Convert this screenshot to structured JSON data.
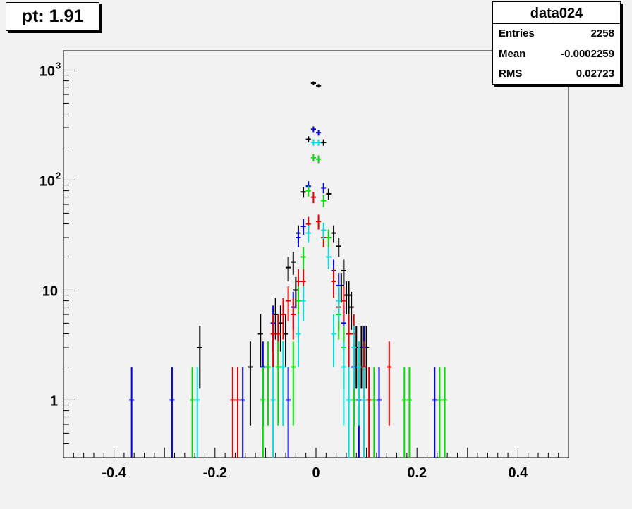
{
  "title": "pt: 1.91",
  "stats": {
    "name": "data024",
    "rows": [
      {
        "label": "Entries",
        "value": "2258"
      },
      {
        "label": "Mean",
        "value": "-0.0002259"
      },
      {
        "label": "RMS",
        "value": "0.02723"
      }
    ]
  },
  "chart_data": {
    "type": "scatter",
    "xlim": [
      -0.5,
      0.5
    ],
    "ylim": [
      0.3,
      1500
    ],
    "y_scale": "log",
    "x_ticks": [
      "-0.4",
      "-0.2",
      "0",
      "0.2",
      "0.4"
    ],
    "x_tick_values": [
      -0.4,
      -0.2,
      0,
      0.2,
      0.4
    ],
    "y_ticks": [
      {
        "value": 1,
        "base": "1",
        "exp": ""
      },
      {
        "value": 10,
        "base": "10",
        "exp": ""
      },
      {
        "value": 100,
        "base": "10",
        "exp": "2"
      },
      {
        "value": 1000,
        "base": "10",
        "exp": "3"
      }
    ],
    "series": [
      {
        "color": "#000000",
        "points": [
          [
            -0.23,
            3
          ],
          [
            -0.13,
            2
          ],
          [
            -0.11,
            4
          ],
          [
            -0.08,
            6
          ],
          [
            -0.07,
            5
          ],
          [
            -0.06,
            4
          ],
          [
            -0.055,
            16
          ],
          [
            -0.045,
            18
          ],
          [
            -0.04,
            10
          ],
          [
            -0.035,
            33
          ],
          [
            -0.025,
            78
          ],
          [
            -0.015,
            235
          ],
          [
            -0.005,
            760
          ],
          [
            0.005,
            720
          ],
          [
            0.015,
            220
          ],
          [
            0.025,
            75
          ],
          [
            0.035,
            33
          ],
          [
            0.045,
            25
          ],
          [
            0.05,
            11
          ],
          [
            0.055,
            15
          ],
          [
            0.06,
            9
          ],
          [
            0.065,
            9
          ],
          [
            0.07,
            7
          ],
          [
            0.08,
            3
          ],
          [
            0.09,
            3
          ],
          [
            0.1,
            3
          ]
        ]
      },
      {
        "color": "#0000dd",
        "points": [
          [
            -0.365,
            1
          ],
          [
            -0.285,
            1
          ],
          [
            -0.145,
            1
          ],
          [
            -0.105,
            2
          ],
          [
            -0.085,
            5
          ],
          [
            -0.065,
            2
          ],
          [
            -0.055,
            1
          ],
          [
            -0.045,
            7
          ],
          [
            -0.035,
            30
          ],
          [
            -0.025,
            38
          ],
          [
            -0.015,
            88
          ],
          [
            -0.005,
            290
          ],
          [
            0.005,
            270
          ],
          [
            0.015,
            85
          ],
          [
            0.025,
            30
          ],
          [
            0.035,
            15
          ],
          [
            0.045,
            11
          ],
          [
            0.055,
            5
          ],
          [
            0.065,
            4
          ],
          [
            0.075,
            2
          ],
          [
            0.085,
            1
          ],
          [
            0.095,
            3
          ],
          [
            0.125,
            1
          ],
          [
            0.235,
            1
          ]
        ]
      },
      {
        "color": "#dd0000",
        "points": [
          [
            -0.165,
            1
          ],
          [
            -0.155,
            1
          ],
          [
            -0.085,
            4
          ],
          [
            -0.075,
            4
          ],
          [
            -0.065,
            6
          ],
          [
            -0.055,
            8
          ],
          [
            -0.045,
            6
          ],
          [
            -0.035,
            12
          ],
          [
            -0.025,
            12
          ],
          [
            -0.015,
            40
          ],
          [
            -0.005,
            70
          ],
          [
            0.005,
            42
          ],
          [
            0.015,
            30
          ],
          [
            0.025,
            20
          ],
          [
            0.035,
            12
          ],
          [
            0.045,
            7
          ],
          [
            0.055,
            8
          ],
          [
            0.065,
            4
          ],
          [
            0.075,
            4
          ],
          [
            0.095,
            2
          ],
          [
            0.105,
            1
          ],
          [
            0.145,
            2
          ]
        ]
      },
      {
        "color": "#00dd00",
        "points": [
          [
            -0.245,
            1
          ],
          [
            -0.105,
            1
          ],
          [
            -0.095,
            2
          ],
          [
            -0.075,
            2
          ],
          [
            -0.065,
            2
          ],
          [
            -0.045,
            2
          ],
          [
            -0.035,
            8
          ],
          [
            -0.025,
            20
          ],
          [
            -0.015,
            80
          ],
          [
            -0.005,
            160
          ],
          [
            0.005,
            155
          ],
          [
            0.015,
            65
          ],
          [
            0.025,
            30
          ],
          [
            0.035,
            4
          ],
          [
            0.045,
            6
          ],
          [
            0.055,
            3
          ],
          [
            0.065,
            1
          ],
          [
            0.075,
            1
          ],
          [
            0.085,
            2
          ],
          [
            0.095,
            1
          ],
          [
            0.115,
            1
          ],
          [
            0.175,
            1
          ],
          [
            0.185,
            1
          ],
          [
            0.245,
            1
          ],
          [
            0.255,
            1
          ]
        ]
      },
      {
        "color": "#00dddd",
        "points": [
          [
            -0.235,
            1
          ],
          [
            -0.085,
            1
          ],
          [
            -0.065,
            2
          ],
          [
            -0.035,
            4
          ],
          [
            -0.025,
            8
          ],
          [
            -0.015,
            33
          ],
          [
            -0.005,
            220
          ],
          [
            0.005,
            220
          ],
          [
            0.015,
            35
          ],
          [
            0.025,
            20
          ],
          [
            0.035,
            4
          ],
          [
            0.045,
            8
          ],
          [
            0.055,
            2
          ],
          [
            0.065,
            1
          ],
          [
            0.075,
            3
          ],
          [
            0.085,
            2
          ],
          [
            0.095,
            1
          ]
        ]
      }
    ]
  }
}
